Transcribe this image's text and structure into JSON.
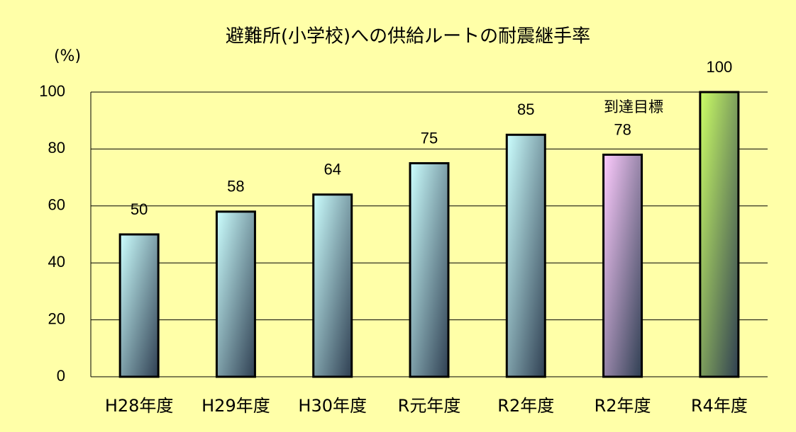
{
  "chart_data": {
    "type": "bar",
    "title": "避難所(小学校)への供給ルートの耐震継手率",
    "y_label": "(%)",
    "annotation": "到達目標",
    "categories": [
      "H28年度",
      "H29年度",
      "H30年度",
      "R元年度",
      "R2年度",
      "R2年度",
      "R4年度"
    ],
    "values": [
      50,
      58,
      64,
      75,
      85,
      78,
      100
    ],
    "colors": [
      "#ccffff",
      "#ccffff",
      "#ccffff",
      "#ccffff",
      "#ccffff",
      "#ffccff",
      "#ccff66"
    ],
    "ylim": [
      0,
      100
    ],
    "yticks": [
      0,
      20,
      40,
      60,
      80,
      100
    ],
    "grid": true
  }
}
